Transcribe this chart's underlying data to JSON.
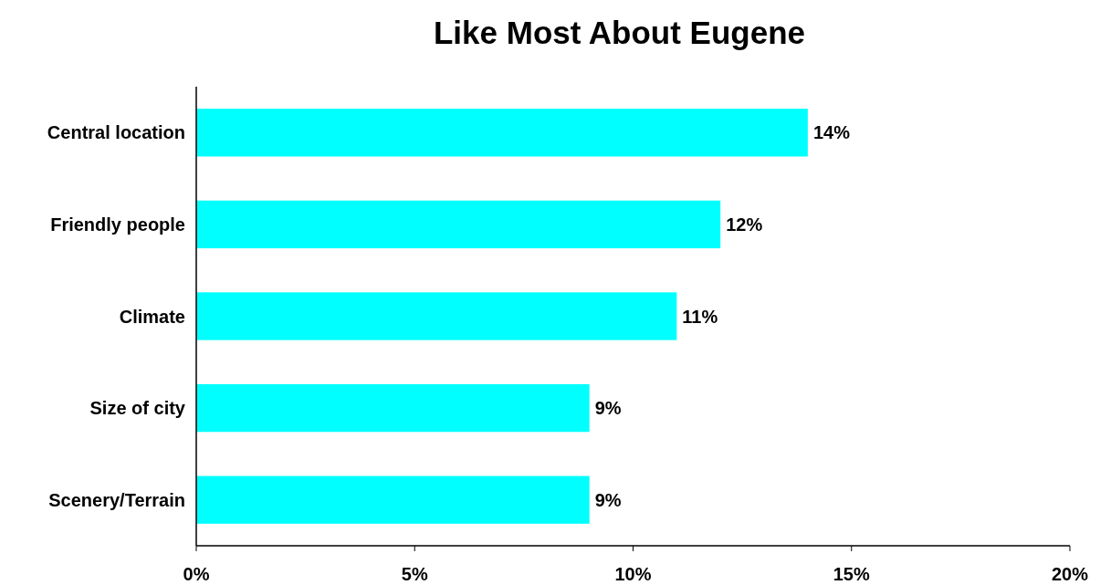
{
  "chart_data": {
    "type": "bar",
    "orientation": "horizontal",
    "title": "Like Most About Eugene",
    "categories": [
      "Central location",
      "Friendly people",
      "Climate",
      "Size of city",
      "Scenery/Terrain"
    ],
    "values": [
      14,
      12,
      11,
      9,
      9
    ],
    "color": "#00ffff",
    "value_labels": [
      "14%",
      "12%",
      "11%",
      "9%",
      "9%"
    ],
    "xlim": [
      0,
      20
    ],
    "xticks": [
      {
        "value": 0,
        "label": "0%"
      },
      {
        "value": 5,
        "label": "5%"
      },
      {
        "value": 10,
        "label": "10%"
      },
      {
        "value": 15,
        "label": "15%"
      },
      {
        "value": 20,
        "label": "20%"
      }
    ],
    "grid": false
  }
}
